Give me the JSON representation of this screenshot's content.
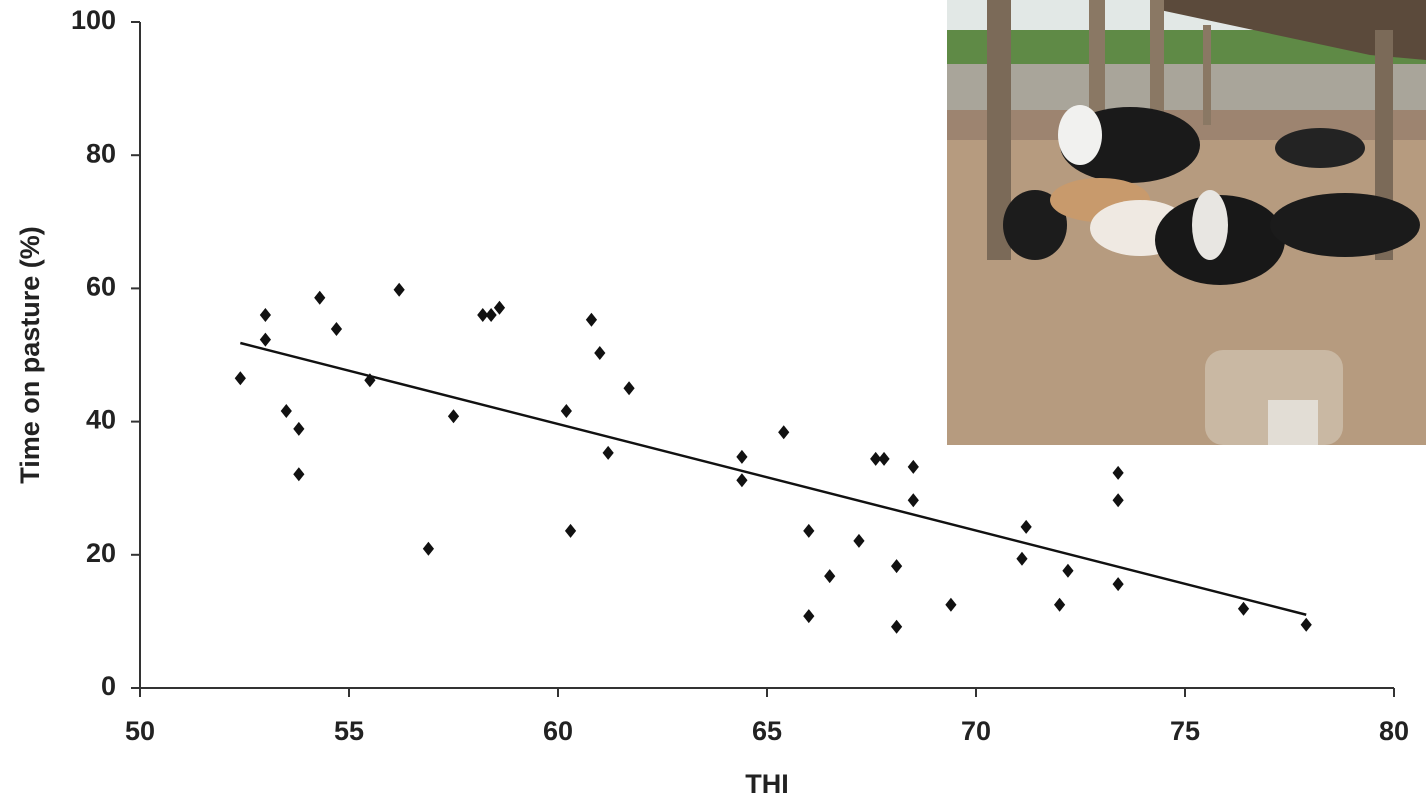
{
  "chart_data": {
    "type": "scatter",
    "xlabel": "THI",
    "ylabel": "Time on pasture (%)",
    "x": [
      52.4,
      53.0,
      53.0,
      53.5,
      53.8,
      53.8,
      54.3,
      54.7,
      55.5,
      56.2,
      56.9,
      57.5,
      58.2,
      58.4,
      58.6,
      60.2,
      60.3,
      60.8,
      61.0,
      61.2,
      61.7,
      64.4,
      64.4,
      65.4,
      66.0,
      66.0,
      66.5,
      67.2,
      67.6,
      67.8,
      68.1,
      68.1,
      68.5,
      68.5,
      69.4,
      71.2,
      71.1,
      72.0,
      72.2,
      73.4,
      73.4,
      73.4,
      76.4,
      77.9
    ],
    "values": [
      46.5,
      56.0,
      52.3,
      41.6,
      38.9,
      32.1,
      58.6,
      53.9,
      46.2,
      59.8,
      20.9,
      40.8,
      56.0,
      56.0,
      57.1,
      41.6,
      23.6,
      55.3,
      50.3,
      35.3,
      45.0,
      34.7,
      31.2,
      38.4,
      10.8,
      23.6,
      16.8,
      22.1,
      34.4,
      34.4,
      9.2,
      18.3,
      33.2,
      28.2,
      12.5,
      24.2,
      19.4,
      12.5,
      17.6,
      32.3,
      28.2,
      15.6,
      11.9,
      9.5
    ],
    "color": "#111111",
    "trend_line": {
      "x": [
        52.4,
        77.9
      ],
      "values": [
        51.8,
        11.0
      ],
      "color": "#111111"
    },
    "xlim": [
      50,
      80
    ],
    "xticks": [
      50,
      55,
      60,
      65,
      70,
      75,
      80
    ],
    "ylim": [
      0,
      100
    ],
    "yticks": [
      0,
      20,
      40,
      60,
      80,
      100
    ]
  }
}
